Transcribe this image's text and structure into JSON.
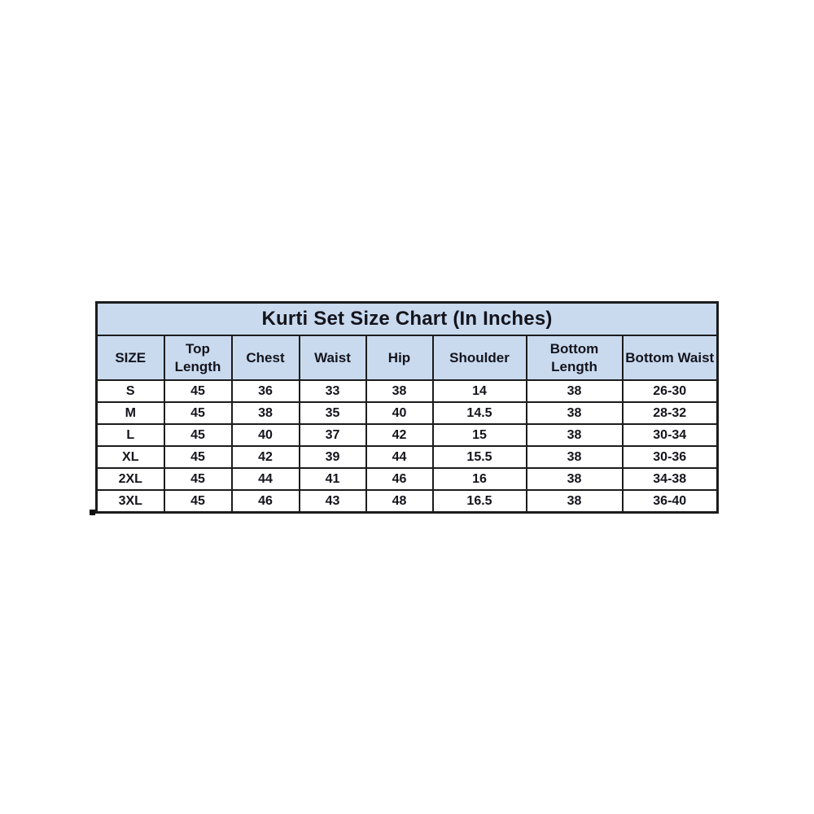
{
  "table": {
    "title": "Kurti Set Size Chart (In Inches)",
    "columns": [
      "SIZE",
      "Top Length",
      "Chest",
      "Waist",
      "Hip",
      "Shoulder",
      "Bottom Length",
      "Bottom Waist"
    ],
    "rows": [
      [
        "S",
        "45",
        "36",
        "33",
        "38",
        "14",
        "38",
        "26-30"
      ],
      [
        "M",
        "45",
        "38",
        "35",
        "40",
        "14.5",
        "38",
        "28-32"
      ],
      [
        "L",
        "45",
        "40",
        "37",
        "42",
        "15",
        "38",
        "30-34"
      ],
      [
        "XL",
        "45",
        "42",
        "39",
        "44",
        "15.5",
        "38",
        "30-36"
      ],
      [
        "2XL",
        "45",
        "44",
        "41",
        "46",
        "16",
        "38",
        "34-38"
      ],
      [
        "3XL",
        "45",
        "46",
        "43",
        "48",
        "16.5",
        "38",
        "36-40"
      ]
    ],
    "colors": {
      "header_bg": "#c9daef",
      "border": "#1c1c1c",
      "text": "#14141c"
    }
  },
  "chart_data": {
    "type": "table",
    "title": "Kurti Set Size Chart (In Inches)",
    "columns": [
      "SIZE",
      "Top Length",
      "Chest",
      "Waist",
      "Hip",
      "Shoulder",
      "Bottom Length",
      "Bottom Waist"
    ],
    "rows": [
      [
        "S",
        "45",
        "36",
        "33",
        "38",
        "14",
        "38",
        "26-30"
      ],
      [
        "M",
        "45",
        "38",
        "35",
        "40",
        "14.5",
        "38",
        "28-32"
      ],
      [
        "L",
        "45",
        "40",
        "37",
        "42",
        "15",
        "38",
        "30-34"
      ],
      [
        "XL",
        "45",
        "42",
        "39",
        "44",
        "15.5",
        "38",
        "30-36"
      ],
      [
        "2XL",
        "45",
        "44",
        "41",
        "46",
        "16",
        "38",
        "34-38"
      ],
      [
        "3XL",
        "45",
        "46",
        "43",
        "48",
        "16.5",
        "38",
        "36-40"
      ]
    ]
  }
}
